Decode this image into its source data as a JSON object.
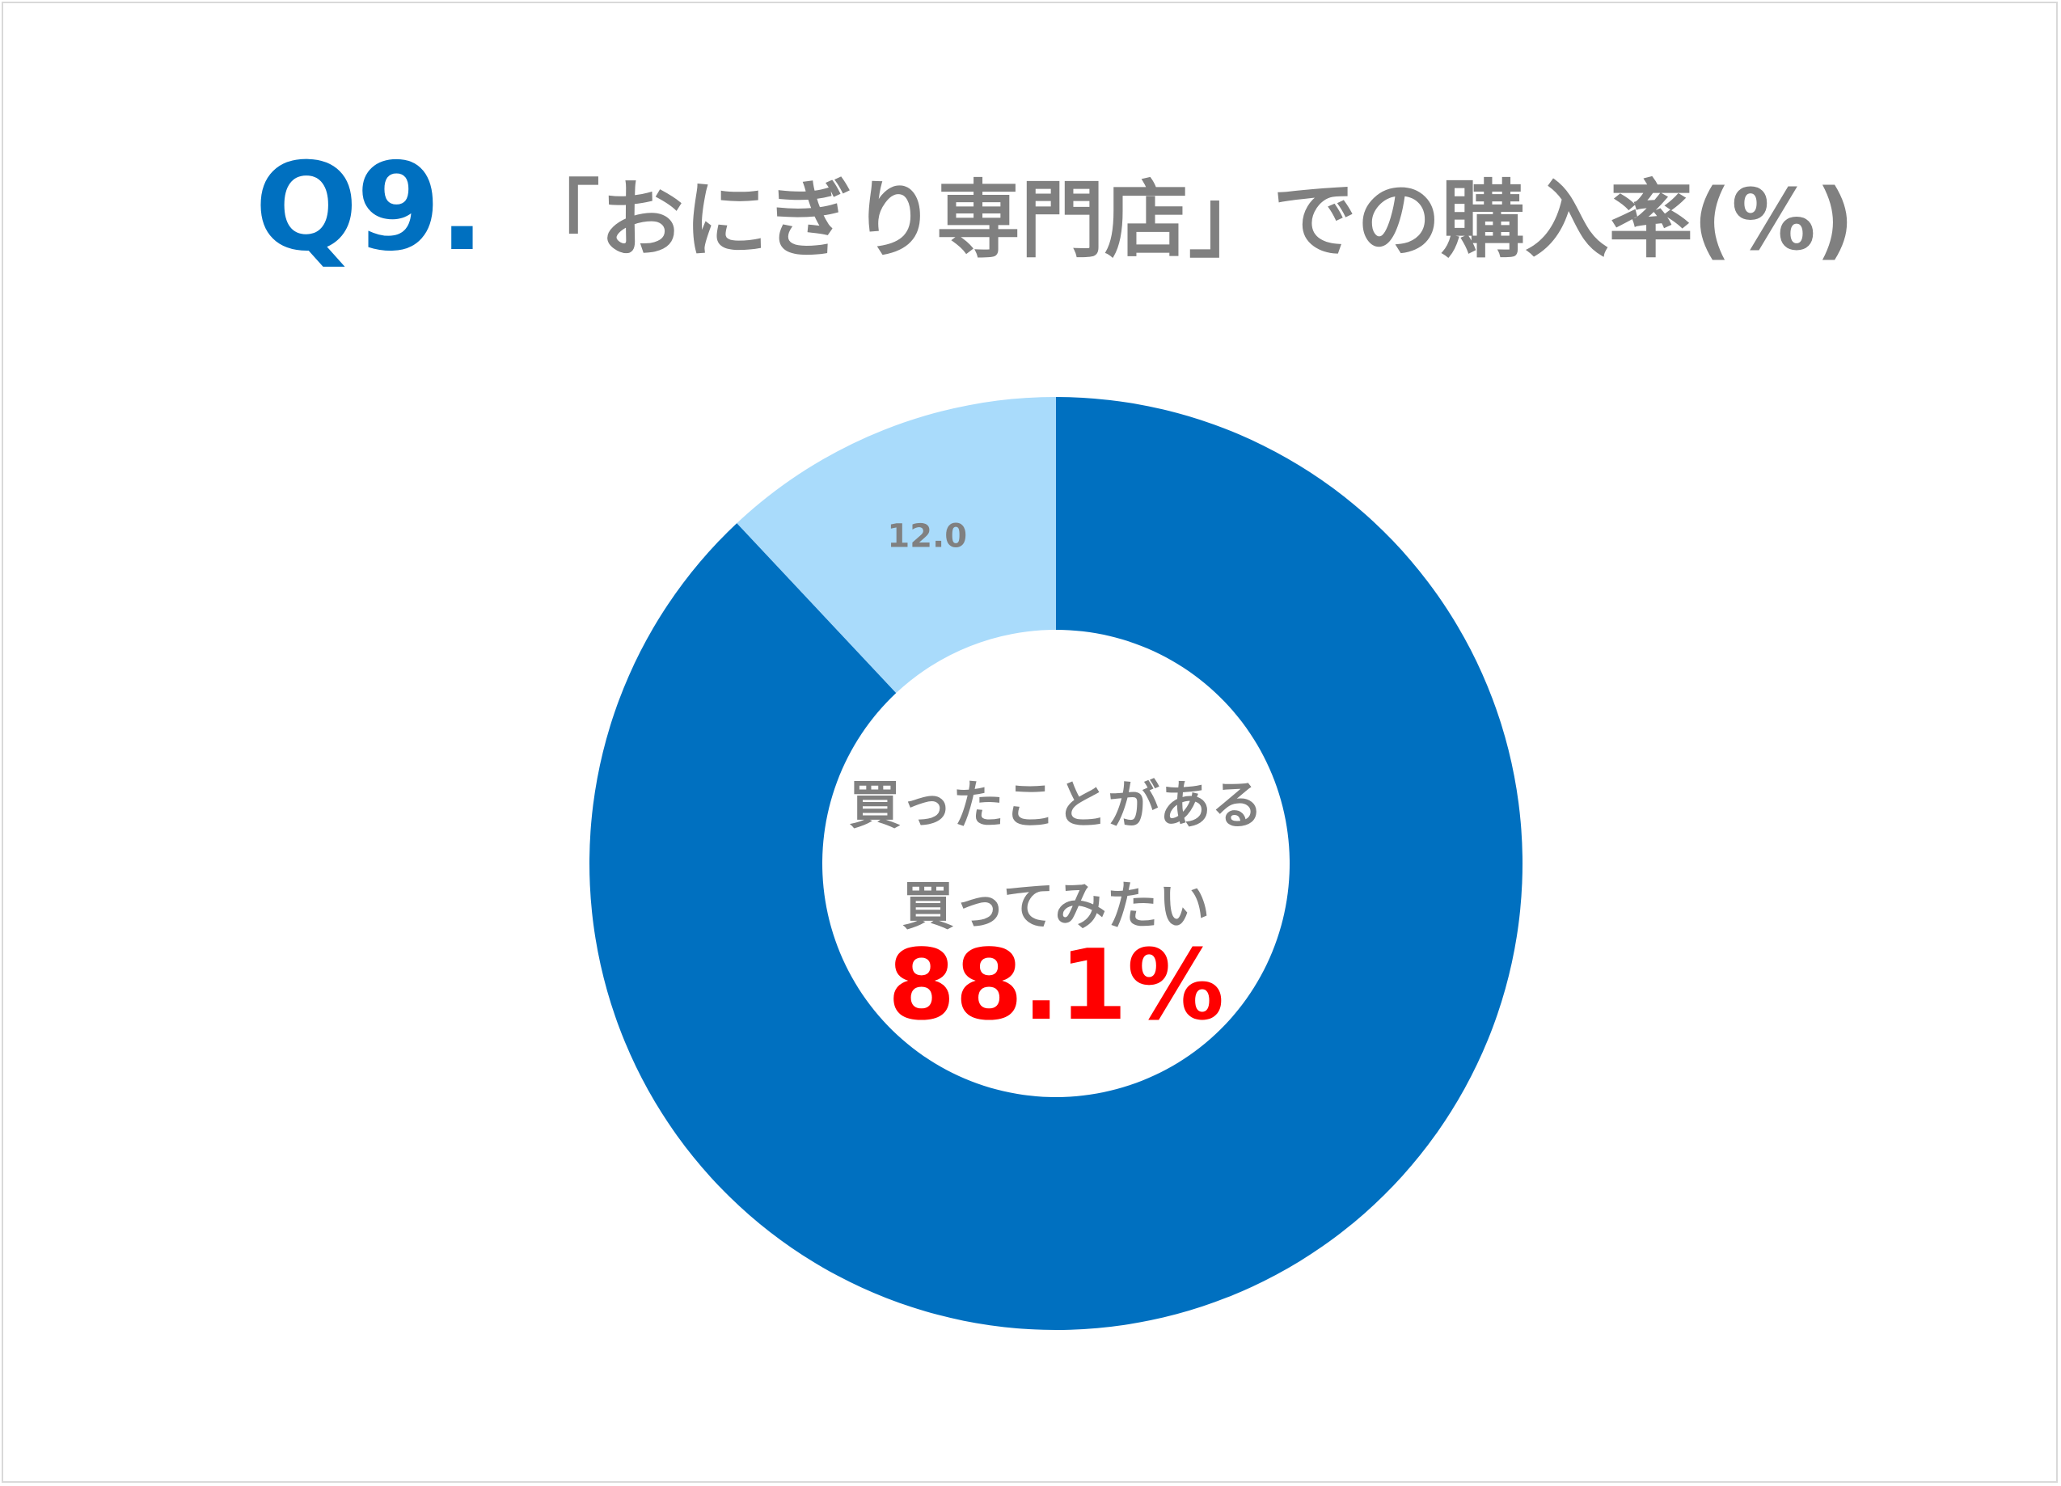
{
  "title": {
    "q_label": "Q9.",
    "text": "「おにぎり専門店」での購入率(%)"
  },
  "center": {
    "line1": "買ったことがある",
    "line2": "買ってみたい",
    "value": "88.1%"
  },
  "colors": {
    "accent": "#0070c0",
    "light": "#a9dbfb",
    "text_gray": "#808080",
    "highlight": "#ff0000"
  },
  "chart_data": {
    "type": "pie",
    "donut": true,
    "title": "「おにぎり専門店」での購入率(%)",
    "slices": [
      {
        "label": "買ったことがある・買ってみたい",
        "value": 88.1,
        "color": "#0070c0",
        "data_label": ""
      },
      {
        "label": "",
        "value": 12.0,
        "color": "#a9dbfb",
        "data_label": "12.0"
      }
    ],
    "start_angle_deg": 0,
    "direction": "clockwise"
  }
}
